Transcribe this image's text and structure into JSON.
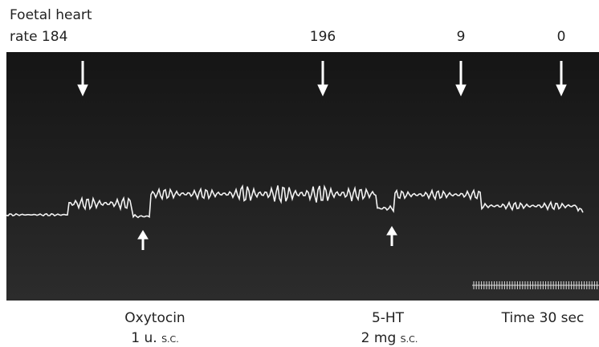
{
  "labels": {
    "heart_rate_title": "Foetal heart",
    "heart_rate_start": "rate 184",
    "rate_2": "196",
    "rate_3": "9",
    "rate_4": "0"
  },
  "injections": [
    {
      "drug": "Oxytocin",
      "dose": "1 u.",
      "route": "S.C."
    },
    {
      "drug": "5-HT",
      "dose": "2 mg",
      "route": "S.C."
    }
  ],
  "time_marker": "Time 30 sec"
}
